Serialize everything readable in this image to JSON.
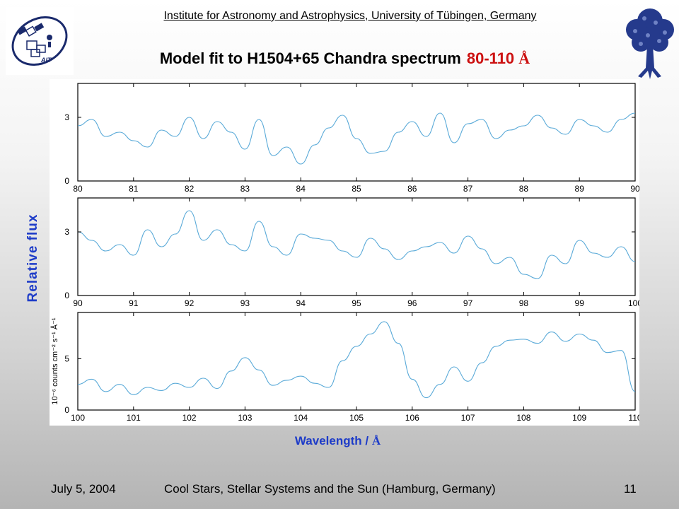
{
  "header": {
    "institute": "Institute for Astronomy and Astrophysics, University of Tübingen, Germany",
    "title_main": "Model fit to H1504+65 Chandra spectrum",
    "title_range": "80-110",
    "title_unit": "Å",
    "logo_left_text": "AIT",
    "logo_left": "ait-logo-satellite",
    "logo_right": "tree-logo"
  },
  "footer": {
    "date": "July 5, 2004",
    "conference": "Cool Stars, Stellar Systems and the Sun (Hamburg, Germany)",
    "page": "11"
  },
  "axes": {
    "ylabel": "Relative flux",
    "xlabel": "Wavelength / ",
    "xlabel_unit": "Å",
    "inner_ylabel": "10⁻⁶ counts cm⁻² s⁻¹ Å⁻¹"
  },
  "colors": {
    "line": "#5aaad8",
    "axis": "#000000",
    "accent": "#1e3cc8",
    "title_red": "#cc1111"
  },
  "chart_data": [
    {
      "type": "line",
      "xlim": [
        80,
        90
      ],
      "ylim": [
        0,
        4.6
      ],
      "xticks": [
        80,
        81,
        82,
        83,
        84,
        85,
        86,
        87,
        88,
        89,
        90
      ],
      "yticks": [
        0,
        3
      ],
      "x": [
        80,
        80.25,
        80.5,
        80.75,
        81,
        81.25,
        81.5,
        81.75,
        82,
        82.25,
        82.5,
        82.75,
        83,
        83.25,
        83.5,
        83.75,
        84,
        84.25,
        84.5,
        84.75,
        85,
        85.25,
        85.5,
        85.75,
        86,
        86.25,
        86.5,
        86.75,
        87,
        87.25,
        87.5,
        87.75,
        88,
        88.25,
        88.5,
        88.75,
        89,
        89.25,
        89.5,
        89.75,
        90
      ],
      "y": [
        2.6,
        2.9,
        2.1,
        2.3,
        1.9,
        1.6,
        2.4,
        2.1,
        3.0,
        2.0,
        2.8,
        2.3,
        1.5,
        2.9,
        1.2,
        1.6,
        0.8,
        1.7,
        2.5,
        3.1,
        2.0,
        1.3,
        1.4,
        2.3,
        2.8,
        2.1,
        3.2,
        1.8,
        2.7,
        2.9,
        2.0,
        2.4,
        2.6,
        3.1,
        2.5,
        2.2,
        2.9,
        2.6,
        2.3,
        2.9,
        3.2
      ]
    },
    {
      "type": "line",
      "xlim": [
        90,
        100
      ],
      "ylim": [
        0,
        4.6
      ],
      "xticks": [
        90,
        91,
        92,
        93,
        94,
        95,
        96,
        97,
        98,
        99,
        100
      ],
      "yticks": [
        0,
        3
      ],
      "x": [
        90,
        90.25,
        90.5,
        90.75,
        91,
        91.25,
        91.5,
        91.75,
        92,
        92.25,
        92.5,
        92.75,
        93,
        93.25,
        93.5,
        93.75,
        94,
        94.25,
        94.5,
        94.75,
        95,
        95.25,
        95.5,
        95.75,
        96,
        96.25,
        96.5,
        96.75,
        97,
        97.25,
        97.5,
        97.75,
        98,
        98.25,
        98.5,
        98.75,
        99,
        99.25,
        99.5,
        99.75,
        100
      ],
      "y": [
        3.0,
        2.6,
        2.1,
        2.4,
        1.9,
        3.1,
        2.3,
        2.9,
        4.0,
        2.6,
        3.1,
        2.4,
        2.1,
        3.5,
        2.3,
        1.9,
        2.9,
        2.7,
        2.6,
        2.1,
        1.8,
        2.7,
        2.2,
        1.7,
        2.1,
        2.3,
        2.5,
        2.0,
        2.8,
        2.2,
        1.5,
        1.8,
        1.0,
        0.8,
        1.9,
        1.5,
        2.6,
        2.0,
        1.8,
        2.3,
        1.6
      ]
    },
    {
      "type": "line",
      "xlim": [
        100,
        110
      ],
      "ylim": [
        0,
        9.5
      ],
      "xticks": [
        100,
        101,
        102,
        103,
        104,
        105,
        106,
        107,
        108,
        109,
        110
      ],
      "yticks": [
        0,
        5
      ],
      "x": [
        100,
        100.25,
        100.5,
        100.75,
        101,
        101.25,
        101.5,
        101.75,
        102,
        102.25,
        102.5,
        102.75,
        103,
        103.25,
        103.5,
        103.75,
        104,
        104.25,
        104.5,
        104.75,
        105,
        105.25,
        105.5,
        105.75,
        106,
        106.25,
        106.5,
        106.75,
        107,
        107.25,
        107.5,
        107.75,
        108,
        108.25,
        108.5,
        108.75,
        109,
        109.25,
        109.5,
        109.75,
        110
      ],
      "y": [
        2.5,
        3.0,
        1.8,
        2.5,
        1.5,
        2.2,
        1.9,
        2.6,
        2.2,
        3.1,
        2.1,
        3.8,
        5.1,
        3.9,
        2.4,
        2.9,
        3.3,
        2.6,
        2.2,
        4.8,
        6.2,
        7.4,
        8.6,
        6.5,
        3.0,
        1.2,
        2.5,
        4.2,
        2.8,
        4.6,
        6.2,
        6.8,
        6.9,
        6.5,
        7.6,
        6.7,
        7.4,
        6.8,
        5.6,
        5.8,
        1.8
      ]
    }
  ]
}
